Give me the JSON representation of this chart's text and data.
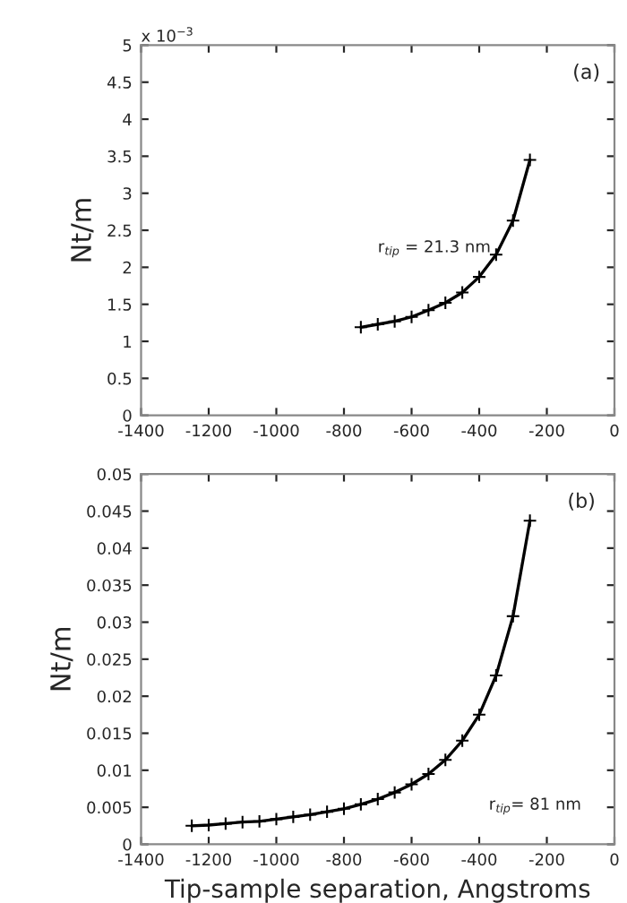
{
  "chart_data": [
    {
      "type": "line",
      "ylabel": "Nt/m",
      "annotations": [
        "(a)",
        "r$_{tip}$ = 21.3 nm",
        "x 10$^{−3}$"
      ],
      "marker": "cross",
      "line_style": "solid",
      "grid": false,
      "legend": false,
      "x": [
        -750,
        -700,
        -650,
        -600,
        -550,
        -500,
        -450,
        -400,
        -350,
        -300,
        -250
      ],
      "series": [
        {
          "color": "#000000",
          "values": [
            1.19,
            1.23,
            1.27,
            1.33,
            1.42,
            1.52,
            1.66,
            1.87,
            2.17,
            2.63,
            3.45
          ]
        }
      ],
      "xlim": [
        -1400,
        0
      ],
      "xticks": [
        -1400,
        -1200,
        -1000,
        -800,
        -600,
        -400,
        -200,
        0
      ],
      "ylim": [
        0,
        5
      ],
      "yticks": [
        0,
        0.5,
        1,
        1.5,
        2,
        2.5,
        3,
        3.5,
        4,
        4.5,
        5
      ]
    },
    {
      "type": "line",
      "ylabel": "Nt/m",
      "xlabel": "Tip-sample separation, Angstroms",
      "annotations": [
        "(b)",
        "r$_{tip}$= 81 nm"
      ],
      "marker": "cross",
      "line_style": "solid",
      "grid": false,
      "legend": false,
      "x": [
        -1250,
        -1200,
        -1150,
        -1100,
        -1050,
        -1000,
        -950,
        -900,
        -850,
        -800,
        -750,
        -700,
        -650,
        -600,
        -550,
        -500,
        -450,
        -400,
        -350,
        -300,
        -250
      ],
      "series": [
        {
          "color": "#000000",
          "values": [
            0.0025,
            0.0026,
            0.0028,
            0.003,
            0.0031,
            0.0034,
            0.0037,
            0.004,
            0.0044,
            0.0048,
            0.0054,
            0.0061,
            0.007,
            0.0081,
            0.0095,
            0.0114,
            0.014,
            0.0175,
            0.0228,
            0.0308,
            0.0437
          ]
        }
      ],
      "xlim": [
        -1400,
        0
      ],
      "xticks": [
        -1400,
        -1200,
        -1000,
        -800,
        -600,
        -400,
        -200,
        0
      ],
      "ylim": [
        0,
        0.05
      ],
      "yticks": [
        0,
        0.005,
        0.01,
        0.015,
        0.02,
        0.025,
        0.03,
        0.035,
        0.04,
        0.045,
        0.05
      ]
    }
  ]
}
